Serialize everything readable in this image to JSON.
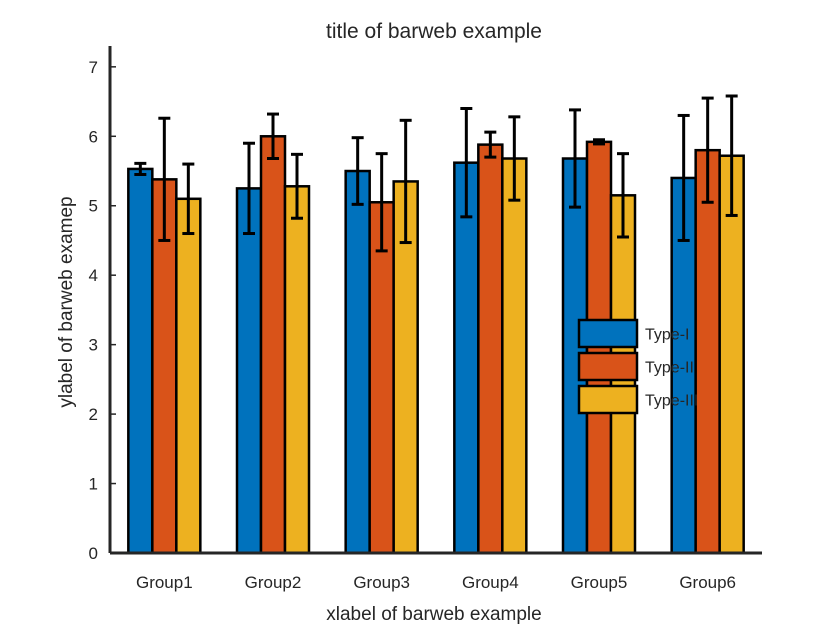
{
  "chart_data": {
    "type": "bar",
    "title": "title of barweb example",
    "xlabel": "xlabel of barweb example",
    "ylabel": "ylabel of barweb examep",
    "ylim": [
      0,
      7.3
    ],
    "yticks": [
      0,
      1,
      2,
      3,
      4,
      5,
      6,
      7
    ],
    "grid": false,
    "legend_position": "right",
    "categories": [
      "Group1",
      "Group2",
      "Group3",
      "Group4",
      "Group5",
      "Group6"
    ],
    "series": [
      {
        "name": "Type-I",
        "color": "#0072BD",
        "values": [
          5.53,
          5.25,
          5.5,
          5.62,
          5.68,
          5.4
        ],
        "errors": [
          0.08,
          0.65,
          0.48,
          0.78,
          0.7,
          0.9
        ]
      },
      {
        "name": "Type-II",
        "color": "#D95319",
        "values": [
          5.38,
          6.0,
          5.05,
          5.88,
          5.92,
          5.8
        ],
        "errors": [
          0.88,
          0.32,
          0.7,
          0.18,
          0.03,
          0.75
        ]
      },
      {
        "name": "Type-III",
        "color": "#EDB120",
        "values": [
          5.1,
          5.28,
          5.35,
          5.68,
          5.15,
          5.72
        ],
        "errors": [
          0.5,
          0.46,
          0.88,
          0.6,
          0.6,
          0.86
        ]
      }
    ]
  }
}
